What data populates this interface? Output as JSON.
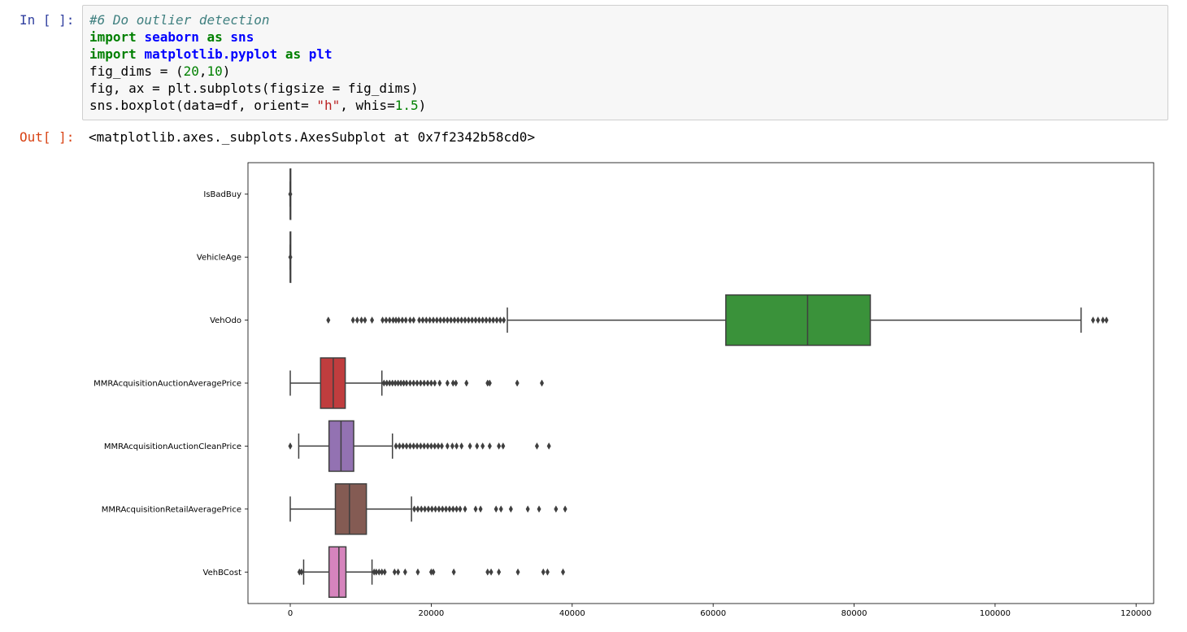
{
  "input_cell": {
    "prompt": "In [ ]:",
    "lines": {
      "l1": "#6 Do outlier detection",
      "l2_kw1": "import",
      "l2_mod": "seaborn",
      "l2_kw2": "as",
      "l2_alias": "sns",
      "l3_kw1": "import",
      "l3_mod": "matplotlib.pyplot",
      "l3_kw2": "as",
      "l3_alias": "plt",
      "l4_a": "fig_dims = (",
      "l4_n1": "20",
      "l4_b": ",",
      "l4_n2": "10",
      "l4_c": ")",
      "l5": "fig, ax = plt.subplots(figsize = fig_dims)",
      "l6_a": "sns.boxplot(data=df, orient= ",
      "l6_s": "\"h\"",
      "l6_b": ", whis=",
      "l6_n": "1.5",
      "l6_c": ")"
    }
  },
  "output_cell": {
    "prompt": "Out[ ]:",
    "text": "<matplotlib.axes._subplots.AxesSubplot at 0x7f2342b58cd0>"
  },
  "chart_data": {
    "type": "boxplot",
    "orientation": "horizontal",
    "xlim": [
      -6000,
      122500
    ],
    "xticks": [
      0,
      20000,
      40000,
      60000,
      80000,
      100000,
      120000
    ],
    "xtick_labels": [
      "0",
      "20000",
      "40000",
      "60000",
      "80000",
      "100000",
      "120000"
    ],
    "series": [
      {
        "label": "IsBadBuy",
        "color": "#3b73ad",
        "whisker_low": 0,
        "q1": 0,
        "median": 0,
        "q3": 0,
        "whisker_high": 0,
        "outliers": [
          1
        ]
      },
      {
        "label": "VehicleAge",
        "color": "#e1812c",
        "whisker_low": 0,
        "q1": 0,
        "median": 0,
        "q3": 0,
        "whisker_high": 0,
        "outliers": [
          9
        ]
      },
      {
        "label": "VehOdo",
        "color": "#3a923a",
        "whisker_low": 30800,
        "q1": 61800,
        "median": 73400,
        "q3": 82300,
        "whisker_high": 112200,
        "outliers": [
          5400,
          8900,
          9500,
          10100,
          10600,
          11600,
          13100,
          13600,
          14100,
          14600,
          15000,
          15400,
          15900,
          16400,
          17000,
          17500,
          18300,
          18800,
          19300,
          19800,
          20300,
          20800,
          21300,
          21800,
          22300,
          22800,
          23300,
          23800,
          24300,
          24800,
          25300,
          25800,
          26300,
          26800,
          27300,
          27800,
          28300,
          28800,
          29300,
          29800,
          30300,
          113900,
          114600,
          115300,
          115800
        ]
      },
      {
        "label": "MMRAcquisitionAuctionAveragePrice",
        "color": "#c03d3e",
        "whisker_low": 0,
        "q1": 4300,
        "median": 6100,
        "q3": 7800,
        "whisker_high": 13000,
        "outliers": [
          13300,
          13700,
          14100,
          14500,
          14900,
          15300,
          15700,
          16100,
          16500,
          17000,
          17500,
          18000,
          18500,
          19000,
          19500,
          20000,
          20500,
          21200,
          22300,
          23100,
          23500,
          25000,
          28000,
          28300,
          32200,
          35700
        ]
      },
      {
        "label": "MMRAcquisitionAuctionCleanPrice",
        "color": "#9372b2",
        "whisker_low": 1200,
        "q1": 5500,
        "median": 7200,
        "q3": 9000,
        "whisker_high": 14500,
        "outliers": [
          0,
          15000,
          15500,
          16000,
          16500,
          17000,
          17500,
          18000,
          18500,
          19000,
          19500,
          20000,
          20500,
          21000,
          21500,
          22300,
          23000,
          23600,
          24300,
          25500,
          26500,
          27300,
          28300,
          29600,
          30200,
          35000,
          36700
        ]
      },
      {
        "label": "MMRAcquisitionRetailAveragePrice",
        "color": "#845b53",
        "whisker_low": 0,
        "q1": 6400,
        "median": 8400,
        "q3": 10800,
        "whisker_high": 17200,
        "outliers": [
          17600,
          18100,
          18600,
          19100,
          19600,
          20100,
          20600,
          21100,
          21600,
          22100,
          22600,
          23100,
          23600,
          24100,
          24800,
          26300,
          27000,
          29200,
          29900,
          31300,
          33700,
          35300,
          37700,
          39000
        ]
      },
      {
        "label": "VehBCost",
        "color": "#d684bd",
        "whisker_low": 1900,
        "q1": 5500,
        "median": 6900,
        "q3": 7900,
        "whisker_high": 11600,
        "outliers": [
          1300,
          1600,
          11900,
          12200,
          12600,
          13000,
          13400,
          14800,
          15300,
          16300,
          18100,
          20000,
          20300,
          23200,
          28000,
          28500,
          29600,
          32300,
          35900,
          36500,
          38700
        ]
      }
    ]
  }
}
